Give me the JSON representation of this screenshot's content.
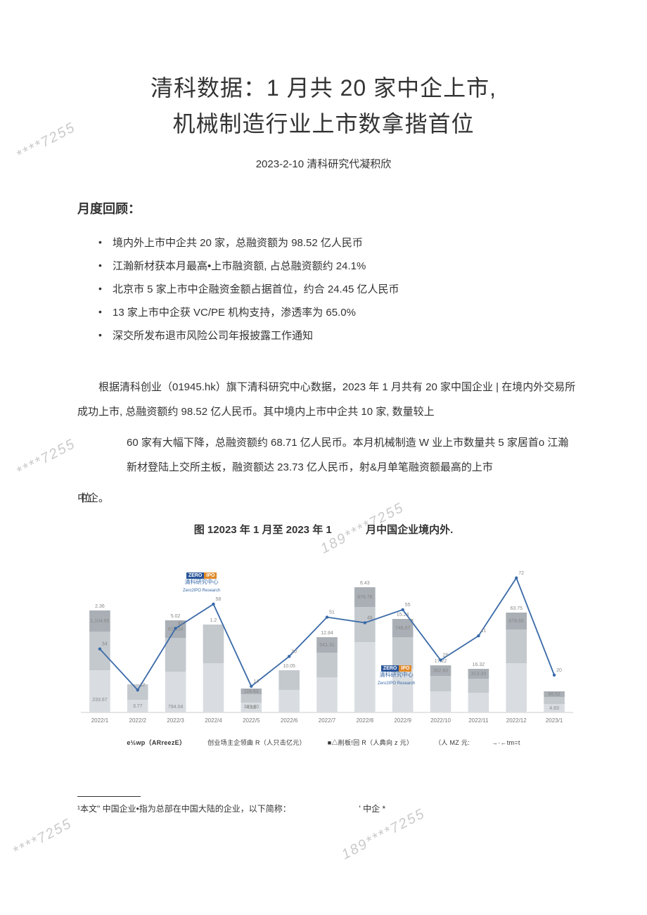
{
  "title_line1": "清科数据：1 月共 20 家中企上市,",
  "title_line2": "机械制造行业上市数拿揩首位",
  "date_line": "2023-2-10 清科研究代凝积欣",
  "section_heading": "月度回顾：",
  "bullets": [
    "境内外上市中企共 20 家，总融资额为 98.52 亿人民币",
    "江瀚新材获本月最高•上市融资额, 占总融资额约 24.1%",
    "北京市 5 家上市中企融资金额占据首位，约合 24.45 亿人民币",
    "13 家上市中企获 VC/PE 机构支持，渗透率为 65.0%",
    "深交所发布退市风险公司年报披露工作通知"
  ],
  "para1": "根据清科创业（01945.hk）旗下清科研究中心数据，2023 年 1 月共有 20 家中国企业 | 在境内外交易所成功上市, 总融资额约 98.52 亿人民币。其中境内上市中企共 10 家, 数量较上",
  "para2": "60 家有大幅下降，总融资额约 68.71 亿人民币。本月机械制造 W 业上市数量共 5 家居首o 江瀚新材登陆上交所主板，融资额达 23.73 亿人民币，射&月单笔融资额最高的上市",
  "para3_prefix": "位",
  "para3": "中企。",
  "chart_title_a": "图 12023 年 1 月至 2023 年 1",
  "chart_title_b": "月中国企业境内外.",
  "chart": {
    "type": "bar_line_combo",
    "background_color": "#ffffff",
    "categories": [
      "2022/1",
      "2022/2",
      "2022/3",
      "2022/4",
      "2022/5",
      "2022/6",
      "2022/7",
      "2022/8",
      "2022/9",
      "2022/10",
      "2022/11",
      "2022/12",
      "2023/1"
    ],
    "bar_color_light": "#d9dde1",
    "bar_color_mid": "#c4c9ce",
    "bar_color_dark": "#a9afb5",
    "line_color": "#3a6aa8",
    "line_width": 1.8,
    "axis_color": "#cccccc",
    "label_color": "#888888",
    "axis_fontsize": 8,
    "bar_label_fontsize": 7,
    "ylim": [
      0,
      240
    ],
    "bars_stack": [
      {
        "top": "2.36",
        "segs": [
          {
            "h": 60,
            "c": "#d9dde1",
            "lbl": ""
          },
          {
            "h": 55,
            "c": "#c4c9ce",
            "lbl": ""
          },
          {
            "h": 30,
            "c": "#a9afb5",
            "lbl": "1,104.65"
          },
          {
            "h": 0,
            "c": "",
            "lbl": ""
          }
        ],
        "lower": [
          "",
          "233.67"
        ]
      },
      {
        "top": "",
        "segs": [
          {
            "h": 18,
            "c": "#d9dde1",
            "lbl": "3.77"
          },
          {
            "h": 22,
            "c": "#c4c9ce",
            "lbl": ""
          },
          {
            "h": 0,
            "c": "#a9afb5",
            "lbl": ""
          },
          {
            "h": 0,
            "c": "",
            "lbl": ""
          }
        ],
        "lower": [
          ""
        ]
      },
      {
        "top": "5.02",
        "segs": [
          {
            "h": 58,
            "c": "#d9dde1",
            "lbl": ""
          },
          {
            "h": 48,
            "c": "#c4c9ce",
            "lbl": ""
          },
          {
            "h": 25,
            "c": "#a9afb5",
            "lbl": "619.24"
          },
          {
            "h": 0,
            "c": "",
            "lbl": ""
          }
        ],
        "lower": [
          "794.04"
        ]
      },
      {
        "top": "1.2",
        "segs": [
          {
            "h": 70,
            "c": "#d9dde1",
            "lbl": ""
          },
          {
            "h": 55,
            "c": "#c4c9ce",
            "lbl": ""
          },
          {
            "h": 0,
            "c": "#a9afb5",
            "lbl": ""
          },
          {
            "h": 0,
            "c": "",
            "lbl": ""
          }
        ],
        "lower": [
          ""
        ]
      },
      {
        "top": "",
        "segs": [
          {
            "h": 14,
            "c": "#d9dde1",
            "lbl": "4.65"
          },
          {
            "h": 12,
            "c": "#c4c9ce",
            "lbl": ""
          },
          {
            "h": 8,
            "c": "#a9afb5",
            "lbl": "116.63"
          },
          {
            "h": 0,
            "c": "",
            "lbl": ""
          }
        ],
        "lower": [
          "389.80"
        ]
      },
      {
        "top": "10.05",
        "segs": [
          {
            "h": 32,
            "c": "#d9dde1",
            "lbl": ""
          },
          {
            "h": 28,
            "c": "#c4c9ce",
            "lbl": ""
          },
          {
            "h": 0,
            "c": "#a9afb5",
            "lbl": ""
          },
          {
            "h": 0,
            "c": "",
            "lbl": ""
          }
        ],
        "lower": [
          ""
        ]
      },
      {
        "top": "12.84",
        "segs": [
          {
            "h": 50,
            "c": "#d9dde1",
            "lbl": ""
          },
          {
            "h": 35,
            "c": "#c4c9ce",
            "lbl": ""
          },
          {
            "h": 22,
            "c": "#a9afb5",
            "lbl": "541.31"
          },
          {
            "h": 0,
            "c": "",
            "lbl": ""
          }
        ],
        "lower": [
          ""
        ]
      },
      {
        "top": "6.43",
        "segs": [
          {
            "h": 100,
            "c": "#d9dde1",
            "lbl": ""
          },
          {
            "h": 50,
            "c": "#c4c9ce",
            "lbl": ""
          },
          {
            "h": 28,
            "c": "#a9afb5",
            "lbl": "876.78"
          },
          {
            "h": 0,
            "c": "",
            "lbl": ""
          }
        ],
        "lower": [
          ""
        ]
      },
      {
        "top": "15.24",
        "segs": [
          {
            "h": 62,
            "c": "#d9dde1",
            "lbl": ""
          },
          {
            "h": 45,
            "c": "#c4c9ce",
            "lbl": ""
          },
          {
            "h": 26,
            "c": "#a9afb5",
            "lbl": "746.67"
          },
          {
            "h": 0,
            "c": "",
            "lbl": ""
          }
        ],
        "lower": [
          ""
        ]
      },
      {
        "top": "17.22",
        "segs": [
          {
            "h": 30,
            "c": "#d9dde1",
            "lbl": ""
          },
          {
            "h": 22,
            "c": "#c4c9ce",
            "lbl": ""
          },
          {
            "h": 15,
            "c": "#a9afb5",
            "lbl": "382.60"
          },
          {
            "h": 0,
            "c": "",
            "lbl": ""
          }
        ],
        "lower": [
          ""
        ]
      },
      {
        "top": "16.32",
        "segs": [
          {
            "h": 28,
            "c": "#d9dde1",
            "lbl": ""
          },
          {
            "h": 20,
            "c": "#c4c9ce",
            "lbl": ""
          },
          {
            "h": 14,
            "c": "#a9afb5",
            "lbl": "313.33"
          },
          {
            "h": 0,
            "c": "",
            "lbl": ""
          }
        ],
        "lower": [
          ""
        ]
      },
      {
        "top": "63.75",
        "segs": [
          {
            "h": 70,
            "c": "#d9dde1",
            "lbl": ""
          },
          {
            "h": 48,
            "c": "#c4c9ce",
            "lbl": ""
          },
          {
            "h": 24,
            "c": "#a9afb5",
            "lbl": "678.65"
          },
          {
            "h": 0,
            "c": "",
            "lbl": ""
          }
        ],
        "lower": [
          ""
        ]
      },
      {
        "top": "",
        "segs": [
          {
            "h": 12,
            "c": "#d9dde1",
            "lbl": "4.83"
          },
          {
            "h": 10,
            "c": "#c4c9ce",
            "lbl": ""
          },
          {
            "h": 8,
            "c": "#a9afb5",
            "lbl": "98.52"
          },
          {
            "h": 0,
            "c": "",
            "lbl": ""
          }
        ],
        "lower": [
          ""
        ]
      }
    ],
    "line_values": [
      34,
      12,
      45,
      58,
      14,
      30,
      51,
      48,
      55,
      28,
      41,
      72,
      20
    ]
  },
  "legend": [
    "e½wp（ARreezE）",
    "创业场主企领曲 R（人只击亿元）",
    "■△削板!回 R（人典向 z 元）",
    "（人 MZ 元:",
    "→·←tm=t"
  ],
  "footnote": "¹本文\" 中国企业•指为总部在中国大陆的企业，以下简称：",
  "footnote_tail": "' 中企 *",
  "watermark_a": "****7255",
  "watermark_b": "189****7255",
  "logo": {
    "left": "ZERO",
    "right": "IPO",
    "sub1": "清科研究中心",
    "sub2": "Zero2IPO Research"
  }
}
